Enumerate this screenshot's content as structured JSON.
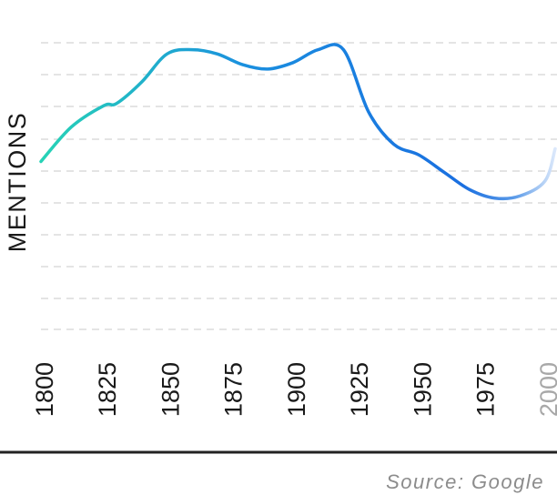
{
  "chart_data": {
    "type": "line",
    "title": "",
    "xlabel": "",
    "ylabel": "MENTIONS",
    "x_ticks": [
      "1800",
      "1825",
      "1850",
      "1875",
      "1900",
      "1925",
      "1950",
      "1975",
      "2000"
    ],
    "x": [
      1800,
      1812,
      1825,
      1830,
      1840,
      1850,
      1860,
      1870,
      1880,
      1890,
      1900,
      1910,
      1920,
      1930,
      1940,
      1950,
      1960,
      1970,
      1980,
      1990,
      2000,
      2004
    ],
    "series": [
      {
        "values": [
          7.8,
          9.4,
          10.4,
          10.5,
          11.5,
          12.8,
          13.0,
          12.8,
          12.3,
          12.1,
          12.4,
          13.0,
          13.0,
          10.1,
          8.6,
          8.1,
          7.3,
          6.5,
          6.1,
          6.2,
          6.9,
          8.4
        ]
      }
    ],
    "xlim": [
      1800,
      2004
    ],
    "ylim": [
      0,
      14.8
    ],
    "grid": true,
    "legend": "none",
    "colors": {
      "line_start": "#27d3b6",
      "line_mid": "#1a8fdf",
      "line_end": "#1a6fe0",
      "line_fade": "#dbe8fb",
      "faded_tick": "#a8a8a8"
    },
    "source": "Source: Google"
  }
}
